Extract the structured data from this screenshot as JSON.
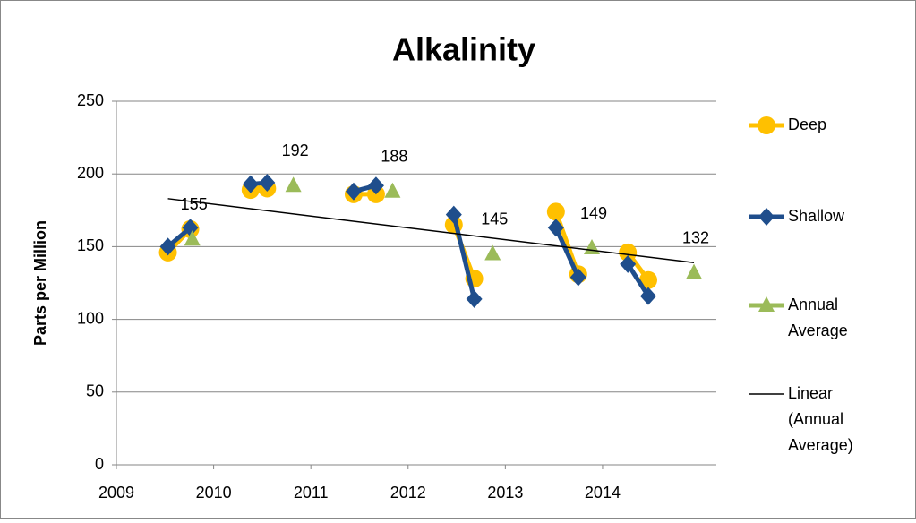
{
  "chart_data": {
    "type": "line",
    "title": "Alkalinity",
    "y_label": "Parts per Million",
    "xlim": [
      2009,
      2015.17
    ],
    "xticks": [
      2009,
      2010,
      2011,
      2012,
      2013,
      2014
    ],
    "ylim": [
      0,
      250
    ],
    "yticks": [
      0,
      50,
      100,
      150,
      200,
      250
    ],
    "grid": true,
    "legend": "right",
    "series": [
      {
        "name": "Deep",
        "color": "#ffc000",
        "marker": "circle",
        "pairs": 2,
        "x": [
          2009.53,
          2009.76,
          2010.38,
          2010.55,
          2011.44,
          2011.67,
          2012.47,
          2012.68,
          2013.52,
          2013.75,
          2014.26,
          2014.47
        ],
        "values": [
          146,
          162,
          189,
          190,
          186,
          186,
          165,
          128,
          174,
          131,
          146,
          127
        ]
      },
      {
        "name": "Shallow",
        "color": "#1f4e8c",
        "marker": "diamond",
        "pairs": 2,
        "x": [
          2009.53,
          2009.76,
          2010.38,
          2010.55,
          2011.44,
          2011.67,
          2012.47,
          2012.68,
          2013.52,
          2013.75,
          2014.26,
          2014.47
        ],
        "values": [
          150,
          163,
          193,
          194,
          188,
          192,
          172,
          114,
          163,
          129,
          138,
          116
        ]
      },
      {
        "name": "Annual Average",
        "color": "#9bbb59",
        "marker": "triangle",
        "labels": true,
        "x": [
          2009.78,
          2010.82,
          2011.84,
          2012.87,
          2013.89,
          2014.94
        ],
        "values": [
          155,
          192,
          188,
          145,
          149,
          132
        ]
      },
      {
        "name": "Linear (Annual Average)",
        "color": "#000000",
        "marker": "none",
        "x": [
          2009.53,
          2014.94
        ],
        "values": [
          183,
          139
        ]
      }
    ]
  }
}
